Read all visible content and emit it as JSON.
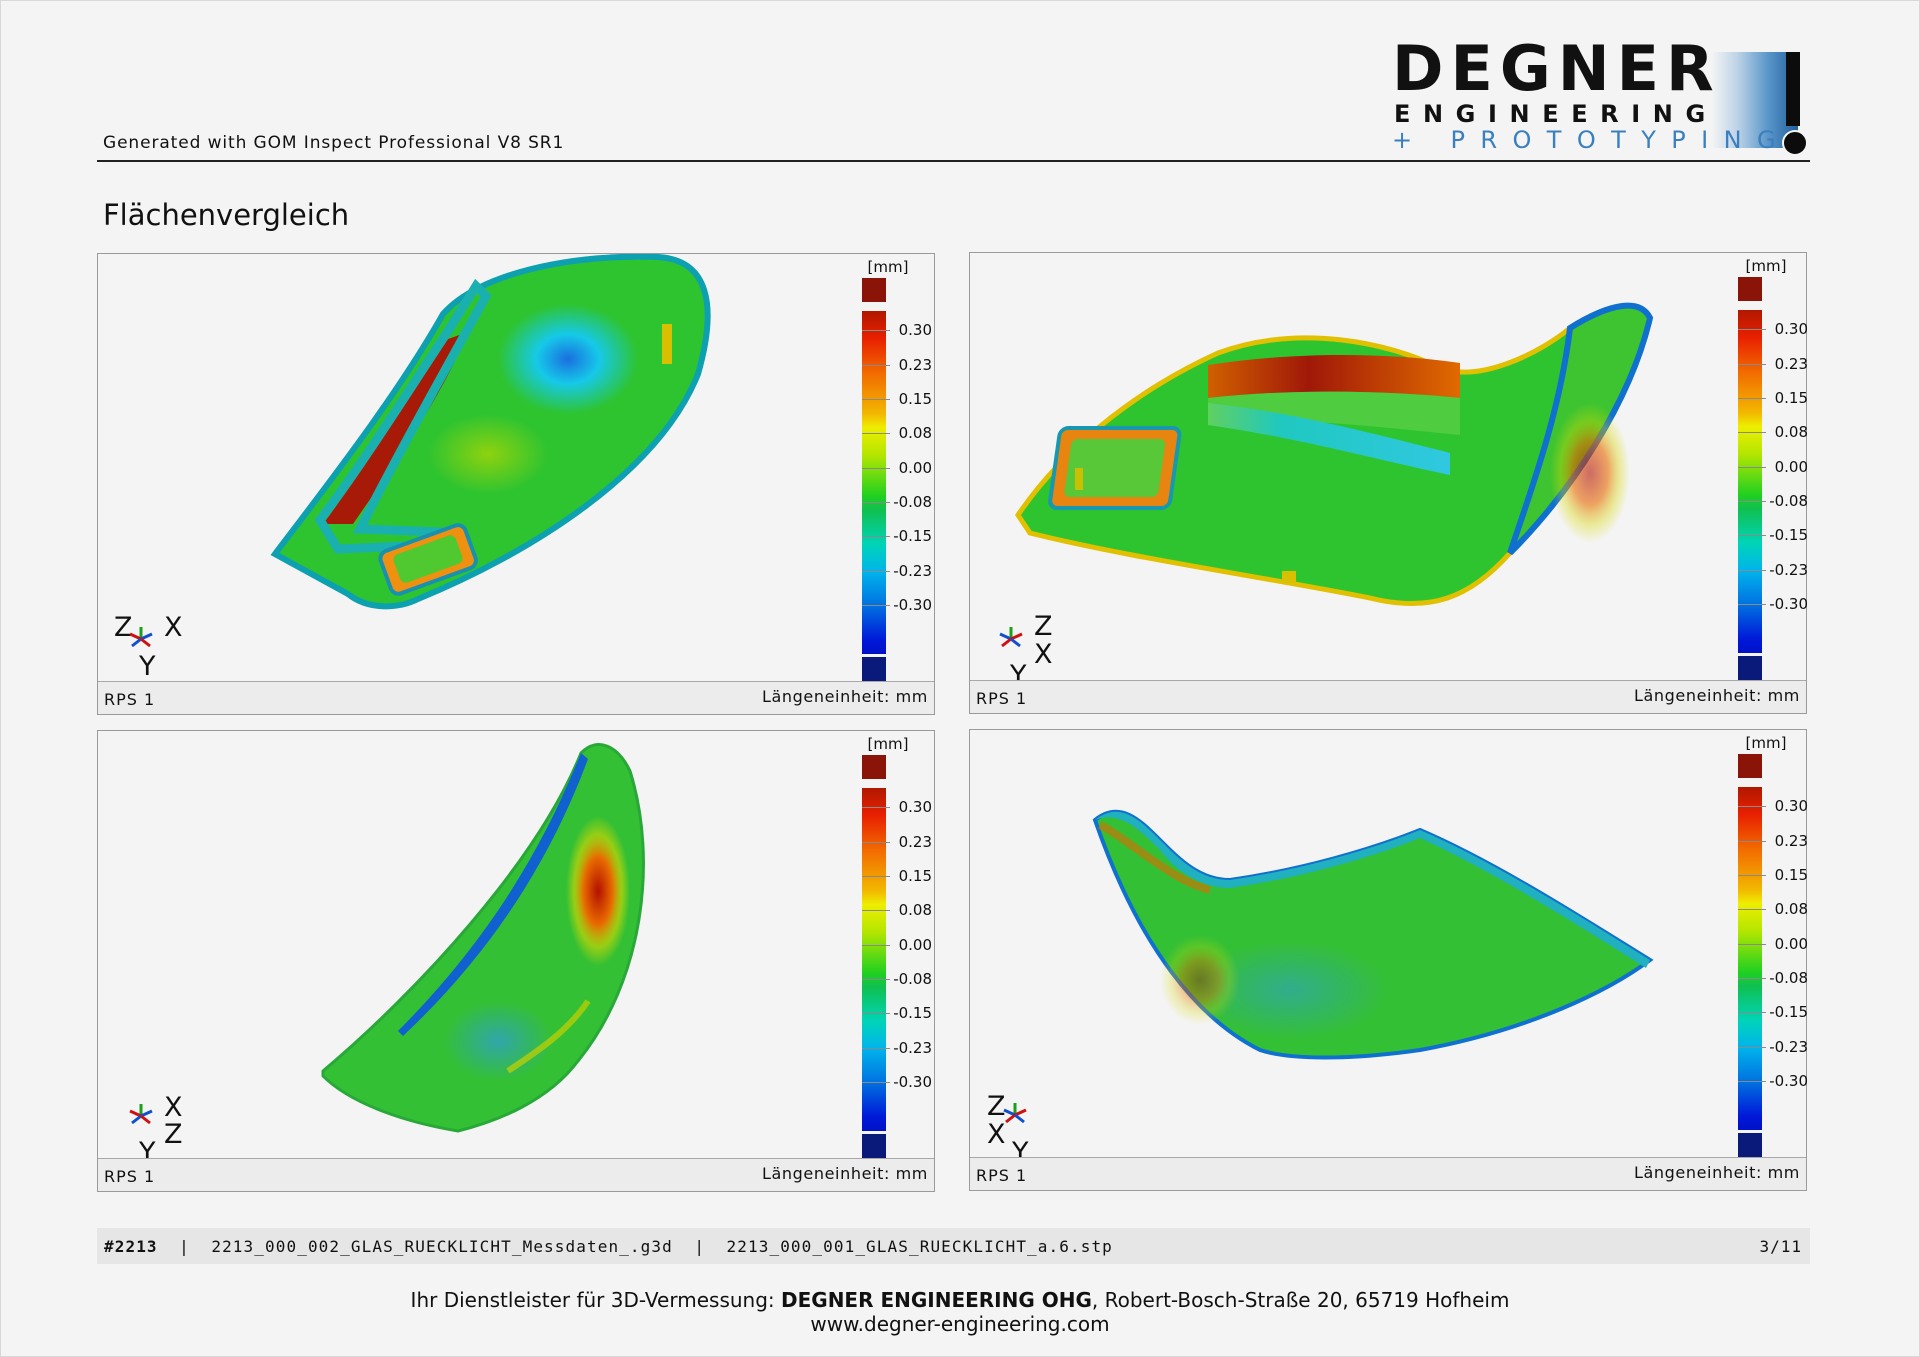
{
  "header": {
    "generated_text": "Generated with GOM Inspect Professional V8 SR1",
    "logo": {
      "name": "DEGNER",
      "line2": "ENGINEERING",
      "line3": "+ PROTOTYPING",
      "accent_color": "#3a7fbf"
    }
  },
  "page_title": "Flächenvergleich",
  "color_scale": {
    "unit": "[mm]",
    "ticks": [
      "0.30",
      "0.23",
      "0.15",
      "0.08",
      "0.00",
      "-0.08",
      "-0.15",
      "-0.23",
      "-0.30"
    ],
    "top_cap_color": "#8b1408",
    "bottom_cap_color": "#0a1a7a"
  },
  "panels": [
    {
      "rps": "RPS 1",
      "unit_text": "Längeneinheit: mm",
      "axes": [
        "Z",
        "X",
        "Y"
      ]
    },
    {
      "rps": "RPS 1",
      "unit_text": "Längeneinheit: mm",
      "axes": [
        "Z",
        "X",
        "Y"
      ]
    },
    {
      "rps": "RPS 1",
      "unit_text": "Längeneinheit: mm",
      "axes": [
        "X",
        "Z",
        "Y"
      ]
    },
    {
      "rps": "RPS 1",
      "unit_text": "Längeneinheit: mm",
      "axes": [
        "Z",
        "X",
        "Y"
      ]
    }
  ],
  "footer": {
    "project": "#2213",
    "separator": "|",
    "file1": "2213_000_002_GLAS_RUECKLICHT_Messdaten_.g3d",
    "file2": "2213_000_001_GLAS_RUECKLICHT_a.6.stp",
    "page": "3/11"
  },
  "tagline": {
    "prefix": "Ihr Dienstleister für 3D-Vermessung: ",
    "company": "DEGNER ENGINEERING OHG",
    "suffix": ", Robert-Bosch-Straße 20, 65719 Hofheim"
  },
  "website": "www.degner-engineering.com"
}
